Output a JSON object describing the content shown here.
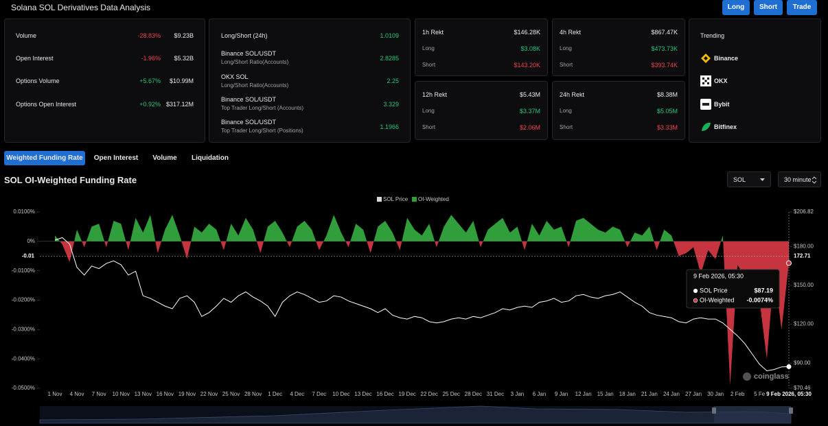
{
  "header": {
    "title": "Solana SOL Derivatives Data Analysis",
    "buttons": [
      "Long",
      "Short",
      "Trade"
    ]
  },
  "overview": {
    "rows": [
      [
        "Volume",
        "-28.83%",
        "$9.23B"
      ],
      [
        "Open Interest",
        "-1.96%",
        "$5.32B"
      ],
      [
        "Options Volume",
        "+5.67%",
        "$10.99M"
      ],
      [
        "Options Open Interest",
        "+0.92%",
        "$317.12M"
      ]
    ]
  },
  "ratios": {
    "rows": [
      {
        "label": "Long/Short (24h)",
        "value": "1.0109"
      },
      {
        "label": "Binance SOL/USDT",
        "sub": "Long/Short Ratio(Accounts)",
        "value": "2.8285"
      },
      {
        "label": "OKX SOL",
        "sub": "Long/Short Ratio(Accounts)",
        "value": "2.25"
      },
      {
        "label": "Binance SOL/USDT",
        "sub": "Top Trader Long/Short (Accounts)",
        "value": "3.329"
      },
      {
        "label": "Binance SOL/USDT",
        "sub": "Top Trader Long/Short (Positions)",
        "value": "1.1966"
      }
    ]
  },
  "rekt": [
    {
      "title": "1h Rekt",
      "total": "$146.28K",
      "long_label": "Long",
      "long": "$3.08K",
      "short_label": "Short",
      "short": "$143.20K"
    },
    {
      "title": "4h Rekt",
      "total": "$867.47K",
      "long_label": "Long",
      "long": "$473.73K",
      "short_label": "Short",
      "short": "$393.74K"
    },
    {
      "title": "12h Rekt",
      "total": "$5.43M",
      "long_label": "Long",
      "long": "$3.37M",
      "short_label": "Short",
      "short": "$2.06M"
    },
    {
      "title": "24h Rekt",
      "total": "$8.38M",
      "long_label": "Long",
      "long": "$5.05M",
      "short_label": "Short",
      "short": "$3.33M"
    }
  ],
  "trending": {
    "title": "Trending",
    "items": [
      "Binance",
      "OKX",
      "Bybit",
      "Bitfinex"
    ]
  },
  "tabs": [
    "Weighted Funding Rate",
    "Open Interest",
    "Volume",
    "Liquidation"
  ],
  "section": {
    "title": "SOL OI-Weighted Funding Rate",
    "symbol": "SOL",
    "interval": "30 minute"
  },
  "chart_data": {
    "type": "line",
    "categories": [
      "1 Nov",
      null,
      null,
      "4 Nov",
      null,
      null,
      "7 Nov",
      null,
      null,
      "10 Nov",
      null,
      null,
      "13 Nov",
      null,
      null,
      "16 Nov",
      null,
      null,
      "19 Nov",
      null,
      null,
      "22 Nov",
      null,
      null,
      "25 Nov",
      null,
      null,
      "28 Nov",
      null,
      null,
      "1 Dec",
      null,
      null,
      "4 Dec",
      null,
      null,
      "7 Dec",
      null,
      null,
      "10 Dec",
      null,
      null,
      "13 Dec",
      null,
      null,
      "16 Dec",
      null,
      null,
      "19 Dec",
      null,
      null,
      "22 Dec",
      null,
      null,
      "25 Dec",
      null,
      null,
      "28 Dec",
      null,
      null,
      "31 Dec",
      null,
      null,
      "3 Jan",
      null,
      null,
      "6 Jan",
      null,
      null,
      "9 Jan",
      null,
      null,
      "12 Jan",
      null,
      null,
      "15 Jan",
      null,
      null,
      "18 Jan",
      null,
      null,
      "21 Jan",
      null,
      null,
      "24 Jan",
      null,
      null,
      "27 Jan",
      null,
      null,
      "30 Jan",
      null,
      null,
      "2 Feb",
      null,
      null,
      "5 Fe",
      null,
      null,
      null,
      "9 Feb 2026, 05:30"
    ],
    "series": [
      {
        "name": "SOL Price",
        "color": "#ffffff",
        "axis": "y2",
        "values": [
          185,
          187,
          182,
          164,
          158,
          165,
          163,
          167,
          169,
          166,
          158,
          161,
          142,
          140,
          137,
          134,
          132,
          140,
          142,
          137,
          126,
          129,
          134,
          140,
          137,
          142,
          145,
          141,
          138,
          134,
          126,
          137,
          142,
          145,
          143,
          140,
          137,
          138,
          142,
          141,
          138,
          136,
          134,
          132,
          129,
          132,
          127,
          125,
          124,
          126,
          125,
          122,
          121,
          122,
          124,
          125,
          124,
          126,
          125,
          127,
          129,
          132,
          131,
          133,
          134,
          133,
          137,
          138,
          140,
          137,
          138,
          142,
          143,
          141,
          140,
          142,
          143,
          145,
          141,
          137,
          134,
          129,
          127,
          126,
          125,
          122,
          121,
          124,
          125,
          124,
          124,
          121,
          116,
          111,
          105,
          97,
          89,
          84,
          85,
          87,
          87.19
        ]
      },
      {
        "name": "OI-Weighted",
        "color": "#2f9e3b",
        "negative_color": "#c63440",
        "values": [
          0.002,
          -0.001,
          -0.007,
          0.004,
          -0.002,
          0.005,
          0.006,
          -0.002,
          0.007,
          0.006,
          -0.003,
          0.008,
          0.003,
          0.009,
          -0.004,
          0.004,
          0.009,
          0.002,
          -0.006,
          0.005,
          0.003,
          0.006,
          0.004,
          -0.003,
          0.006,
          0.002,
          0.008,
          0.004,
          -0.004,
          0.005,
          0.007,
          0.003,
          -0.002,
          0.005,
          0.007,
          0.004,
          -0.003,
          0.002,
          0.009,
          0.003,
          -0.002,
          0.006,
          0.004,
          -0.004,
          0.005,
          0.007,
          0.003,
          -0.003,
          0.008,
          0.004,
          0.002,
          0.006,
          -0.002,
          0.005,
          0.009,
          0.006,
          0.003,
          0.007,
          -0.002,
          0.004,
          0.006,
          0.008,
          0.003,
          0.005,
          -0.003,
          0.006,
          0.002,
          0.007,
          0.004,
          0.005,
          -0.002,
          0.007,
          0.008,
          0.006,
          0.004,
          0.003,
          0.005,
          0.004,
          -0.002,
          0.003,
          0.002,
          0.005,
          -0.003,
          0.004,
          0.002,
          -0.005,
          -0.004,
          -0.002,
          -0.011,
          -0.003,
          -0.006,
          0.002,
          -0.049,
          -0.008,
          -0.012,
          -0.015,
          -0.02,
          -0.04,
          -0.01,
          -0.03,
          -0.0074
        ]
      }
    ],
    "ylim": [
      -0.05,
      0.01
    ],
    "yticks": [
      {
        "value": 0.01,
        "label": "0.0100%"
      },
      {
        "value": 0,
        "label": "0%"
      },
      {
        "value": -0.01,
        "label": "-0.0100%"
      },
      {
        "value": -0.02,
        "label": "-0.0200%"
      },
      {
        "value": -0.03,
        "label": "-0.0300%"
      },
      {
        "value": -0.04,
        "label": "-0.0400%"
      },
      {
        "value": -0.05,
        "label": "-0.0500%"
      }
    ],
    "y2lim": [
      70.46,
      206.82
    ],
    "y2ticks": [
      {
        "value": 206.82,
        "label": "$206.82"
      },
      {
        "value": 180,
        "label": "$180.00"
      },
      {
        "value": 150,
        "label": "$150.00"
      },
      {
        "value": 120,
        "label": "$120.00"
      },
      {
        "value": 90,
        "label": "$90.00"
      },
      {
        "value": 70.46,
        "label": "$70.46"
      }
    ],
    "crosshair": {
      "y2": 172.71,
      "y_label": "-0.01"
    },
    "tooltip": {
      "values": [
        "$87.19",
        "-0.0074%"
      ]
    },
    "watermark": "coinglass",
    "grid": false
  }
}
